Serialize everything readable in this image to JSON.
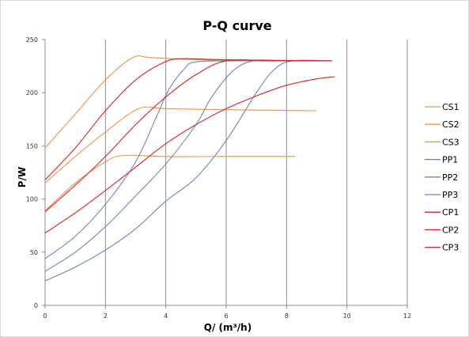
{
  "chart_data": {
    "type": "line",
    "title": "P-Q  curve",
    "xlabel": "Q/  (m³/h)",
    "ylabel": "P/W",
    "xlim": [
      0,
      12
    ],
    "ylim": [
      0,
      250
    ],
    "x_ticks": [
      "0",
      "2",
      "4",
      "6",
      "8",
      "10",
      "12"
    ],
    "y_ticks": [
      "0",
      "50",
      "100",
      "150",
      "200",
      "250"
    ],
    "grid": "vertical",
    "legend_position": "right",
    "colors": {
      "CS": "#e8964a",
      "PP": "#6f86aa",
      "CP": "#d8222c"
    },
    "series": [
      {
        "name": "CS1",
        "group": "CS",
        "points": [
          [
            0,
            148
          ],
          [
            1,
            180
          ],
          [
            2,
            212
          ],
          [
            2.9,
            233
          ],
          [
            3.5,
            233
          ],
          [
            5,
            231
          ],
          [
            7,
            230
          ],
          [
            9.5,
            230
          ]
        ]
      },
      {
        "name": "CS2",
        "group": "CS",
        "points": [
          [
            0,
            115
          ],
          [
            1,
            140
          ],
          [
            2,
            163
          ],
          [
            3.1,
            185
          ],
          [
            4,
            185
          ],
          [
            6,
            184
          ],
          [
            9,
            183
          ]
        ]
      },
      {
        "name": "CS3",
        "group": "CS",
        "points": [
          [
            0,
            89
          ],
          [
            1,
            115
          ],
          [
            2,
            135
          ],
          [
            2.6,
            141
          ],
          [
            4,
            140
          ],
          [
            6,
            140
          ],
          [
            8.3,
            140
          ]
        ]
      },
      {
        "name": "PP1",
        "group": "PP",
        "points": [
          [
            0,
            44
          ],
          [
            1,
            65
          ],
          [
            2,
            95
          ],
          [
            3,
            135
          ],
          [
            3.7,
            178
          ],
          [
            4.1,
            203
          ],
          [
            4.6,
            222
          ],
          [
            5,
            229
          ],
          [
            6.5,
            230
          ],
          [
            9.5,
            230
          ]
        ]
      },
      {
        "name": "PP2",
        "group": "PP",
        "points": [
          [
            0,
            32
          ],
          [
            1,
            50
          ],
          [
            2,
            74
          ],
          [
            3,
            103
          ],
          [
            4,
            133
          ],
          [
            5,
            170
          ],
          [
            5.5,
            195
          ],
          [
            6.2,
            220
          ],
          [
            6.9,
            230
          ],
          [
            8,
            230
          ],
          [
            9.5,
            230
          ]
        ]
      },
      {
        "name": "PP3",
        "group": "PP",
        "points": [
          [
            0,
            23
          ],
          [
            1,
            36
          ],
          [
            2,
            52
          ],
          [
            3,
            72
          ],
          [
            4,
            98
          ],
          [
            5,
            120
          ],
          [
            6,
            155
          ],
          [
            7,
            200
          ],
          [
            7.6,
            222
          ],
          [
            8.2,
            230
          ],
          [
            9.5,
            230
          ]
        ]
      },
      {
        "name": "CP1",
        "group": "CP",
        "points": [
          [
            0,
            118
          ],
          [
            1,
            148
          ],
          [
            2,
            183
          ],
          [
            3,
            212
          ],
          [
            3.9,
            228
          ],
          [
            4.5,
            232
          ],
          [
            6,
            231
          ],
          [
            9.5,
            230
          ]
        ]
      },
      {
        "name": "CP2",
        "group": "CP",
        "points": [
          [
            0,
            88
          ],
          [
            1,
            113
          ],
          [
            2,
            140
          ],
          [
            3,
            170
          ],
          [
            4,
            196
          ],
          [
            5,
            217
          ],
          [
            6,
            230
          ],
          [
            7.5,
            230
          ],
          [
            9.5,
            230
          ]
        ]
      },
      {
        "name": "CP3",
        "group": "CP",
        "points": [
          [
            0,
            68
          ],
          [
            1,
            87
          ],
          [
            2,
            108
          ],
          [
            3,
            130
          ],
          [
            4,
            152
          ],
          [
            5,
            170
          ],
          [
            6,
            185
          ],
          [
            7,
            197
          ],
          [
            8,
            207
          ],
          [
            9,
            213
          ],
          [
            9.6,
            215
          ]
        ]
      }
    ]
  }
}
